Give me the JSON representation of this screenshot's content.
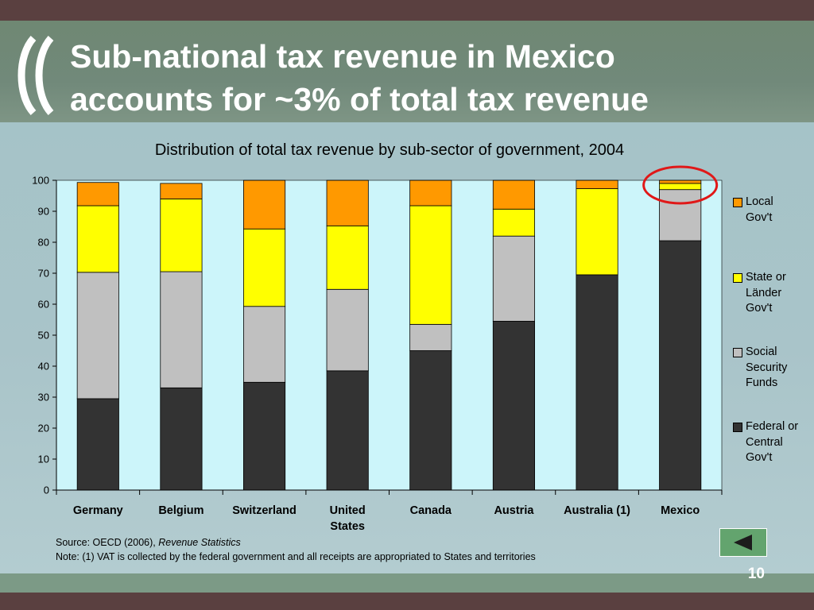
{
  "slide": {
    "title_line1": "Sub-national tax revenue in Mexico",
    "title_line2": "accounts for ~3% of total tax revenue",
    "page_number": "10"
  },
  "colors": {
    "top_strip": "#5a4040",
    "header": "#71897a",
    "background": "#a9c4c9",
    "plot_area": "#ccf5fa",
    "federal": "#333333",
    "social": "#c0c0c0",
    "state": "#ffff00",
    "local": "#ff9900",
    "highlight_circle": "#e01818",
    "back_button": "#63a46e"
  },
  "source": {
    "line1_prefix": "Source:  OECD (2006), ",
    "line1_italic": "Revenue Statistics",
    "line2": "Note:  (1) VAT is collected by the federal government and all receipts are appropriated to States and territories"
  },
  "nav": {
    "back_icon": "left-triangle-icon"
  },
  "chart_data": {
    "type": "bar",
    "stacked": true,
    "title": "Distribution of total tax revenue by sub-sector of government, 2004",
    "xlabel": "",
    "ylabel": "",
    "ylim": [
      0,
      100
    ],
    "yticks": [
      0,
      10,
      20,
      30,
      40,
      50,
      60,
      70,
      80,
      90,
      100
    ],
    "grid": false,
    "legend_position": "right",
    "categories": [
      "Germany",
      "Belgium",
      "Switzerland",
      "United States",
      "Canada",
      "Austria",
      "Australia (1)",
      "Mexico"
    ],
    "category_lines": [
      [
        "Germany"
      ],
      [
        "Belgium"
      ],
      [
        "Switzerland"
      ],
      [
        "United",
        "States"
      ],
      [
        "Canada"
      ],
      [
        "Austria"
      ],
      [
        "Australia (1)"
      ],
      [
        "Mexico"
      ]
    ],
    "series": [
      {
        "name": "Federal or Central Gov't",
        "legend_lines": [
          "Federal or",
          "Central",
          "Gov't"
        ],
        "color": "#333333",
        "values": [
          29.5,
          33,
          34.8,
          38.5,
          45,
          54.5,
          69.5,
          80.5
        ]
      },
      {
        "name": "Social Security Funds",
        "legend_lines": [
          "Social",
          "Security",
          "Funds"
        ],
        "color": "#c0c0c0",
        "values": [
          40.8,
          37.5,
          24.5,
          26.3,
          8.5,
          27.5,
          0,
          16.5
        ]
      },
      {
        "name": "State or Länder Gov't",
        "legend_lines": [
          "State or",
          "Länder",
          "Gov't"
        ],
        "color": "#ffff00",
        "values": [
          21.5,
          23.5,
          25,
          20.5,
          38.3,
          8.7,
          27.8,
          2
        ]
      },
      {
        "name": "Local Gov't",
        "legend_lines": [
          "Local",
          "Gov't"
        ],
        "color": "#ff9900",
        "values": [
          7.5,
          5,
          15.7,
          14.7,
          8.2,
          9.3,
          2.7,
          1
        ]
      }
    ],
    "highlight": "Mexico"
  }
}
